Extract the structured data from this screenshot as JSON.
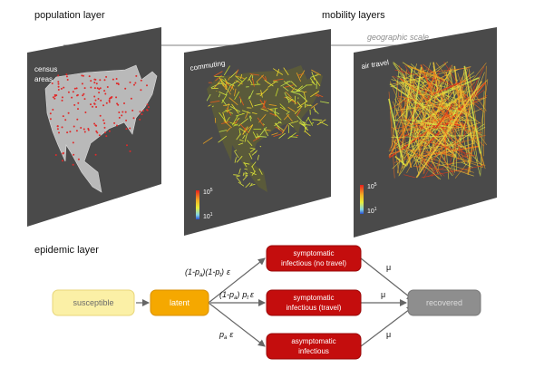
{
  "headings": {
    "population": "population layer",
    "mobility": "mobility layers",
    "epidemic": "epidemic layer"
  },
  "geo_scale": "geographic scale",
  "panels": {
    "census_line1": "census",
    "census_line2": "areas",
    "commuting": "commuting",
    "air_travel": "air travel"
  },
  "legend": {
    "top_base": "10",
    "top_exp": "5",
    "bottom_base": "10",
    "bottom_exp": "1"
  },
  "boxes": {
    "susceptible": "susceptible",
    "latent": "latent",
    "symp_notravel_1": "symptomatic",
    "symp_notravel_2": "infectious (no travel)",
    "symp_travel_1": "symptomatic",
    "symp_travel_2": "infectious (travel)",
    "asymp_1": "asymptomatic",
    "asymp_2": "infectious",
    "recovered": "recovered"
  },
  "rates": {
    "mu": "μ",
    "epsilon": "ε",
    "p": "p",
    "sub_a": "a",
    "sub_t": "t",
    "one_minus": "(1-",
    "close": ")"
  },
  "colors": {
    "panel": "#4a4a4a",
    "box_red": "#c40d0d",
    "box_orange": "#f5a800",
    "box_susceptible": "#fbf0a6",
    "box_recovered": "#8e8e8e",
    "arrow": "#666666"
  }
}
